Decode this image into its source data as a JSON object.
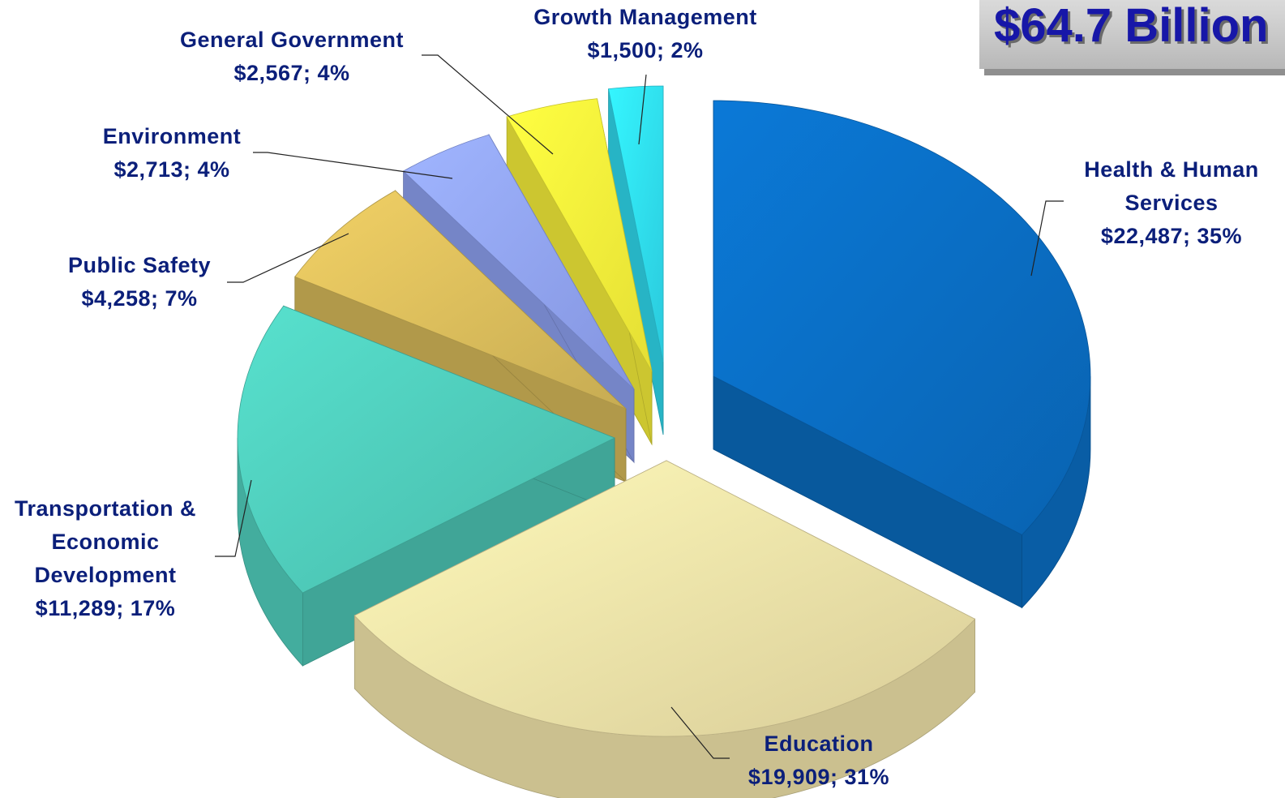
{
  "chart_data": {
    "type": "pie",
    "title": "$64.7 Billion",
    "slices": [
      {
        "name": "Health & Human Services",
        "label_lines": [
          "Health & Human",
          "Services",
          "$22,487; 35%"
        ],
        "value": 22487,
        "percent": 35,
        "color": "#0a6cc0"
      },
      {
        "name": "Education",
        "label_lines": [
          "Education",
          "$19,909; 31%"
        ],
        "value": 19909,
        "percent": 31,
        "color": "#ecdfa6"
      },
      {
        "name": "Transportation & Economic Development",
        "label_lines": [
          "Transportation &",
          "Economic",
          "Development",
          "$11,289; 17%"
        ],
        "value": 11289,
        "percent": 17,
        "color": "#4ec9b8"
      },
      {
        "name": "Public Safety",
        "label_lines": [
          "Public Safety",
          "$4,258; 7%"
        ],
        "value": 4258,
        "percent": 7,
        "color": "#d8bb5a"
      },
      {
        "name": "Environment",
        "label_lines": [
          "Environment",
          "$2,713; 4%"
        ],
        "value": 2713,
        "percent": 4,
        "color": "#8fa2f3"
      },
      {
        "name": "General Government",
        "label_lines": [
          "General Government",
          "$2,567; 4%"
        ],
        "value": 2567,
        "percent": 4,
        "color": "#f9f23a"
      },
      {
        "name": "Growth Management",
        "label_lines": [
          "Growth Management",
          "$1,500; 2%"
        ],
        "value": 1500,
        "percent": 2,
        "color": "#2fdcf0"
      }
    ]
  }
}
